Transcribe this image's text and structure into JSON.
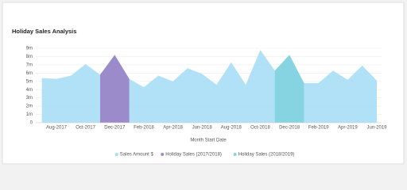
{
  "chart_data": {
    "type": "area",
    "title": "Holiday Sales Analysis",
    "x_label": "Month Start Date",
    "categories": [
      null,
      "Aug-2017",
      null,
      "Oct-2017",
      null,
      "Dec-2017",
      null,
      "Feb-2018",
      null,
      "Apr-2018",
      null,
      "Jun-2018",
      null,
      "Aug-2018",
      null,
      "Oct-2018",
      null,
      "Dec-2018",
      null,
      "Feb-2019",
      null,
      "Apr-2019",
      null,
      "Jun-2019"
    ],
    "series": [
      {
        "name": "Sales Amount $",
        "color": "#a9def6",
        "values": [
          5.4,
          5.3,
          5.7,
          7.1,
          5.8,
          8.2,
          5.3,
          4.3,
          5.7,
          5.0,
          6.6,
          5.9,
          4.6,
          7.3,
          4.6,
          8.8,
          6.3,
          8.2,
          4.8,
          4.8,
          6.3,
          5.2,
          6.9,
          5.1
        ]
      },
      {
        "name": "Holiday Sales (2017/2018)",
        "color": "#9b8bcb",
        "values": [
          null,
          null,
          null,
          null,
          5.8,
          8.2,
          5.3,
          null,
          null,
          null,
          null,
          null,
          null,
          null,
          null,
          null,
          null,
          null,
          null,
          null,
          null,
          null,
          null,
          null
        ]
      },
      {
        "name": "Holiday Sales (2018/2019)",
        "color": "#86d3e2",
        "values": [
          null,
          null,
          null,
          null,
          null,
          null,
          null,
          null,
          null,
          null,
          null,
          null,
          null,
          null,
          null,
          null,
          6.3,
          8.2,
          4.8,
          null,
          null,
          null,
          null,
          null
        ]
      }
    ],
    "ylim": [
      0,
      9
    ],
    "yticks": [
      {
        "value": 0,
        "label": "0"
      },
      {
        "value": 1,
        "label": "1m"
      },
      {
        "value": 2,
        "label": "2m"
      },
      {
        "value": 3,
        "label": "3m"
      },
      {
        "value": 4,
        "label": "4m"
      },
      {
        "value": 5,
        "label": "5m"
      },
      {
        "value": 6,
        "label": "6m"
      },
      {
        "value": 7,
        "label": "7m"
      },
      {
        "value": 8,
        "label": "8m"
      },
      {
        "value": 9,
        "label": "9m"
      }
    ],
    "grid": true
  }
}
